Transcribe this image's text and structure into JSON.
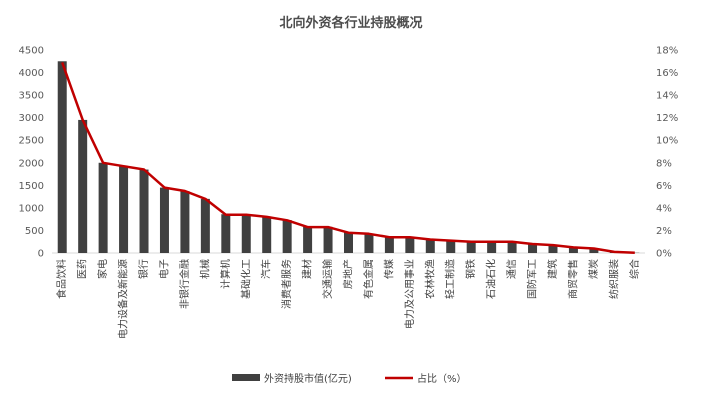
{
  "chart_data": {
    "type": "bar",
    "title": "北向外资各行业持股概况",
    "categories": [
      "食品饮料",
      "医药",
      "家电",
      "电力设备及新能源",
      "银行",
      "电子",
      "非银行金融",
      "机械",
      "计算机",
      "基础化工",
      "汽车",
      "消费者服务",
      "建材",
      "交通运输",
      "房地产",
      "有色金属",
      "传媒",
      "电力及公用事业",
      "农林牧渔",
      "轻工制造",
      "钢铁",
      "石油石化",
      "通信",
      "国防军工",
      "建筑",
      "商贸零售",
      "煤炭",
      "纺织服装",
      "综合"
    ],
    "series": [
      {
        "name": "外资持股市值(亿元)",
        "type": "bar",
        "axis": "left",
        "color": "#404040",
        "values": [
          4250,
          2950,
          2000,
          1920,
          1850,
          1450,
          1370,
          1200,
          860,
          840,
          810,
          730,
          580,
          580,
          460,
          420,
          360,
          360,
          300,
          280,
          260,
          250,
          240,
          200,
          170,
          120,
          100,
          30,
          5
        ]
      },
      {
        "name": "占比（%）",
        "type": "line",
        "axis": "right",
        "color": "#c00000",
        "values": [
          16.9,
          11.8,
          8.0,
          7.7,
          7.4,
          5.8,
          5.5,
          4.8,
          3.4,
          3.4,
          3.2,
          2.9,
          2.3,
          2.3,
          1.8,
          1.7,
          1.4,
          1.4,
          1.2,
          1.1,
          1.0,
          1.0,
          1.0,
          0.8,
          0.7,
          0.5,
          0.4,
          0.1,
          0.02
        ]
      }
    ],
    "y_left": {
      "min": 0,
      "max": 4500,
      "step": 500,
      "ticks": [
        "0",
        "500",
        "1000",
        "1500",
        "2000",
        "2500",
        "3000",
        "3500",
        "4000",
        "4500"
      ]
    },
    "y_right": {
      "min": 0,
      "max": 18,
      "step": 2,
      "ticks": [
        "0%",
        "2%",
        "4%",
        "6%",
        "8%",
        "10%",
        "12%",
        "14%",
        "16%",
        "18%"
      ]
    },
    "grid": false,
    "legend_position": "bottom"
  }
}
